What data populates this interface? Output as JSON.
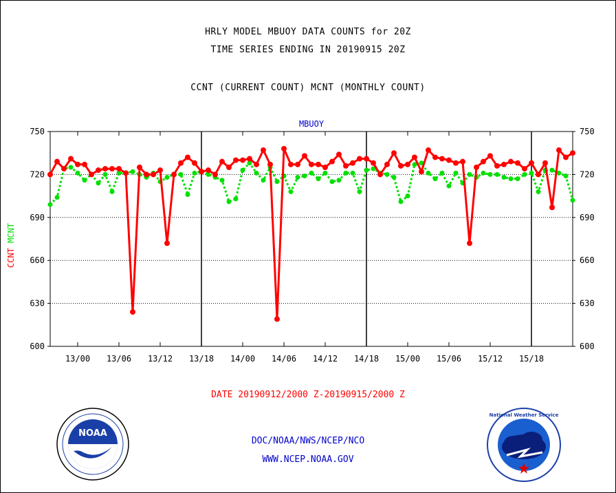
{
  "header": {
    "line1": "HRLY MODEL MBUOY DATA COUNTS for 20Z",
    "line2": "TIME SERIES ENDING IN 20190915 20Z",
    "line3": "CCNT (CURRENT COUNT) MCNT (MONTHLY COUNT)"
  },
  "footer": {
    "date_range": "DATE 20190912/2000 Z-20190915/2000 Z",
    "agency": "DOC/NOAA/NWS/NCEP/NCO",
    "url": "WWW.NCEP.NOAA.GOV"
  },
  "colors": {
    "ccnt": "#ff0000",
    "mcnt": "#00e000",
    "label_blue": "#0000cc",
    "date_red": "#ff0000"
  },
  "logos": {
    "left": "NOAA",
    "right": "National Weather Service"
  },
  "chart_data": {
    "type": "line",
    "title": "MBUOY",
    "xlabel": "",
    "ylabel_ccnt": "CCNT",
    "ylabel_mcnt": "MCNT",
    "ylim": [
      600,
      750
    ],
    "yticks": [
      600,
      630,
      660,
      690,
      720,
      750
    ],
    "x_start_hour": 20,
    "x_tick_labels": [
      "13/00",
      "13/06",
      "13/12",
      "13/18",
      "14/00",
      "14/06",
      "14/12",
      "14/18",
      "15/00",
      "15/06",
      "15/12",
      "15/18"
    ],
    "day_boundaries": [
      "13/18",
      "14/18",
      "15/18"
    ],
    "grid": true,
    "series": [
      {
        "name": "CCNT",
        "color": "#ff0000",
        "values": [
          720,
          729,
          724,
          731,
          727,
          727,
          720,
          723,
          724,
          724,
          724,
          721,
          624,
          725,
          720,
          720,
          723,
          672,
          720,
          728,
          732,
          728,
          722,
          723,
          720,
          729,
          725,
          730,
          730,
          731,
          727,
          737,
          727,
          619,
          738,
          727,
          727,
          733,
          727,
          727,
          725,
          729,
          734,
          726,
          728,
          731,
          731,
          728,
          720,
          727,
          735,
          726,
          727,
          732,
          722,
          737,
          732,
          731,
          730,
          728,
          729,
          672,
          725,
          729,
          733,
          726,
          727,
          729,
          728,
          724,
          728,
          720,
          728,
          697,
          737,
          732,
          735
        ]
      },
      {
        "name": "MCNT",
        "color": "#00e000",
        "values": [
          699,
          704,
          724,
          725,
          721,
          716,
          720,
          714,
          720,
          708,
          721,
          721,
          722,
          720,
          718,
          721,
          715,
          718,
          720,
          720,
          706,
          721,
          722,
          720,
          718,
          716,
          701,
          703,
          723,
          728,
          721,
          716,
          725,
          715,
          719,
          708,
          718,
          719,
          721,
          717,
          721,
          715,
          716,
          721,
          721,
          708,
          723,
          724,
          721,
          720,
          718,
          701,
          705,
          727,
          728,
          721,
          717,
          721,
          712,
          721,
          714,
          720,
          718,
          721,
          720,
          720,
          718,
          717,
          717,
          720,
          721,
          708,
          723,
          723,
          721,
          719,
          702
        ]
      }
    ]
  }
}
